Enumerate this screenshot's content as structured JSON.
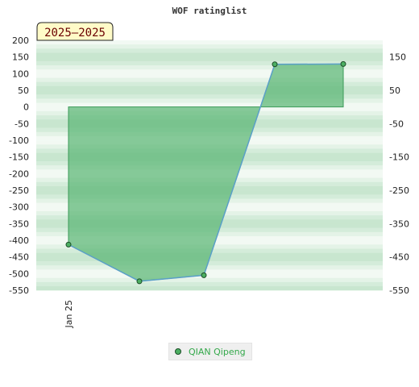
{
  "chart_data": {
    "type": "area",
    "title": "WOF ratinglist",
    "badge": "2025–2025",
    "x": [
      "",
      "",
      "",
      "",
      ""
    ],
    "x_ticks": [
      "Jan 25"
    ],
    "series": [
      {
        "name": "QIAN Qipeng",
        "values": [
          -413,
          -523,
          -505,
          128,
          129
        ]
      }
    ],
    "left_axis": {
      "ylim": [
        -550,
        200
      ],
      "ticks": [
        200,
        150,
        100,
        50,
        0,
        -50,
        -100,
        -150,
        -200,
        -250,
        -300,
        -350,
        -400,
        -450,
        -500,
        -550
      ]
    },
    "right_axis": {
      "ticks": [
        150,
        50,
        -50,
        -150,
        -250,
        -350,
        -450,
        -550
      ]
    },
    "legend_position": "bottom",
    "colors": {
      "line": "#5ba0c8",
      "fill": "#5ab574",
      "band_dark": "#c8e6cf",
      "band_light": "#f2f9f3"
    }
  }
}
